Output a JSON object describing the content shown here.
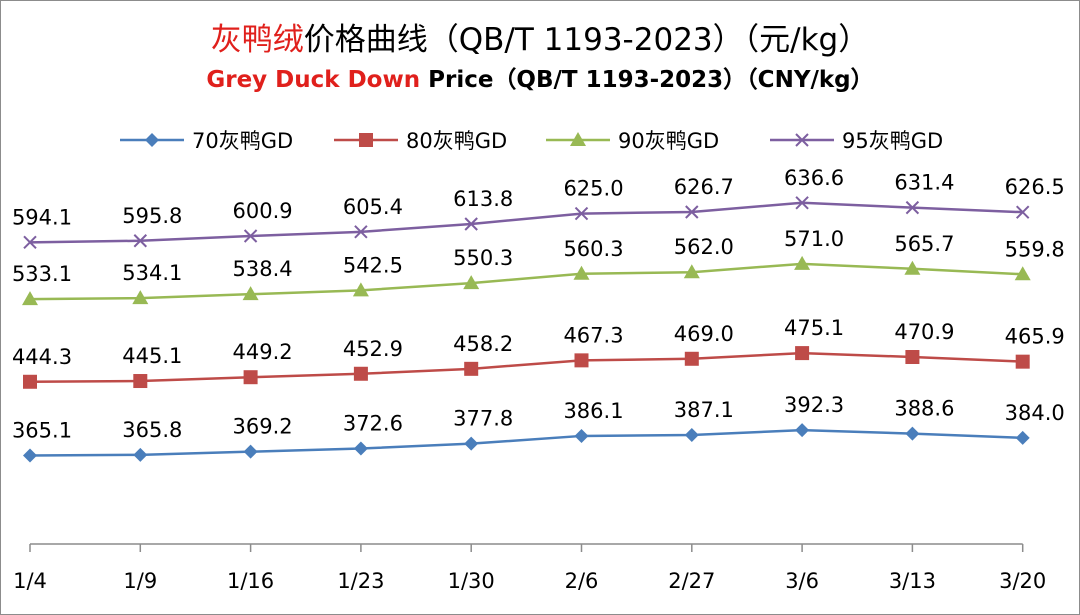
{
  "title": {
    "cn_accent": "灰鸭绒",
    "cn_rest": "价格曲线（QB/T 1193-2023）（元/kg）",
    "en_accent": "Grey Duck Down",
    "en_rest": " Price（QB/T 1193-2023）（CNY/kg）"
  },
  "chart_data": {
    "type": "line",
    "categories": [
      "1/4",
      "1/9",
      "1/16",
      "1/23",
      "1/30",
      "2/6",
      "2/27",
      "3/6",
      "3/13",
      "3/20"
    ],
    "series": [
      {
        "name": "70灰鸭GD",
        "color": "#4a7ebb",
        "marker": "diamond",
        "values": [
          365.1,
          365.8,
          369.2,
          372.6,
          377.8,
          386.1,
          387.1,
          392.3,
          388.6,
          384.0
        ]
      },
      {
        "name": "80灰鸭GD",
        "color": "#be4b48",
        "marker": "square",
        "values": [
          444.3,
          445.1,
          449.2,
          452.9,
          458.2,
          467.3,
          469.0,
          475.1,
          470.9,
          465.9
        ]
      },
      {
        "name": "90灰鸭GD",
        "color": "#98b954",
        "marker": "triangle",
        "values": [
          533.1,
          534.1,
          538.4,
          542.5,
          550.3,
          560.3,
          562.0,
          571.0,
          565.7,
          559.8
        ]
      },
      {
        "name": "95灰鸭GD",
        "color": "#7d5fa0",
        "marker": "x",
        "values": [
          594.1,
          595.8,
          600.9,
          605.4,
          613.8,
          625.0,
          626.7,
          636.6,
          631.4,
          626.5
        ]
      }
    ],
    "value_labels_decimals": 1,
    "legend_position": "top",
    "grid": false,
    "ylim": [
      270,
      660
    ],
    "y_axis_visible": false
  }
}
